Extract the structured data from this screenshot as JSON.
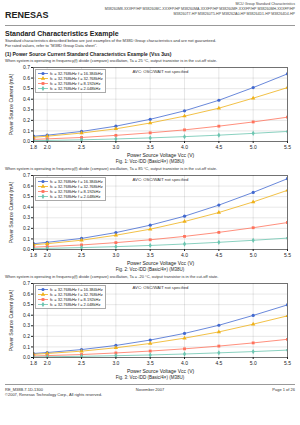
{
  "header": [
    "RENESAS",
    "MCU Group Standard Characteristics",
    "M38260M8-XXXFP/HP M38260MC-XXXFP/HP M38260MA-XXXFP/HP M38260MF-XXXFP/HP M38260MH-XXXFP/HP",
    "M38260T7-HP M38260T5-HP M38262A0-HP M38264D1-HP M38264D4-HP"
  ],
  "title": "Standard Characteristics Example",
  "subtitle": [
    "Standard characteristics described below are just examples of the M38D Group characteristics and are not guaranteed.",
    "For rated values, refer to \"M38D Group Data sheet\"."
  ],
  "footer": [
    "RE_M38B.7.1D-1300",
    "©2007, Renesas Technology Corp., All rights reserved.",
    "November 2007",
    "Page 1 of 26"
  ],
  "chart_data": [
    {
      "type": "line",
      "title": "(1) Power Source Current Standard Characteristics Example (Vss 3us)",
      "subtitle": "When system is operating in frequency(f) divide (compare) oscillation, Ta = 25 °C, output transistor is in the cut-off state.",
      "caption": "Fig. 1: Vcc-IDD (Basic/4×) (M38U)",
      "annotations": [
        "AVC: OSC/WAIT not specified"
      ],
      "xlabel": "Power Source Voltage Vcc (V)",
      "ylabel": "Power Source Current (mA)",
      "x": [
        1.8,
        2.0,
        2.5,
        3.0,
        3.5,
        4.0,
        4.5,
        5.0,
        5.5
      ],
      "series": [
        {
          "name": "fc = 32.768kHz  f = 16.384kHz",
          "marker": "circle",
          "values": [
            0.05,
            0.06,
            0.095,
            0.145,
            0.21,
            0.29,
            0.39,
            0.51,
            0.64
          ]
        },
        {
          "name": "fc = 32.768kHz  f = 32.768kHz",
          "marker": "triangle",
          "values": [
            0.04,
            0.05,
            0.08,
            0.12,
            0.175,
            0.24,
            0.315,
            0.41,
            0.51
          ]
        },
        {
          "name": "fc = 32.768kHz  f = 8.192kHz",
          "marker": "square",
          "values": [
            0.02,
            0.025,
            0.038,
            0.058,
            0.082,
            0.11,
            0.145,
            0.185,
            0.23
          ]
        },
        {
          "name": "fc = 32.768kHz  f = 2.048kHz",
          "marker": "diamond",
          "values": [
            0.008,
            0.01,
            0.016,
            0.024,
            0.034,
            0.046,
            0.06,
            0.077,
            0.095
          ]
        }
      ],
      "xlim": [
        1.8,
        5.5
      ],
      "ylim": [
        0.0,
        0.7
      ],
      "xticks": [
        1.8,
        {
          "value": 2.0,
          "label": "2.0"
        },
        2.5,
        {
          "value": 3.0,
          "label": "3.0"
        },
        3.5,
        {
          "value": 4.0,
          "label": "4.0"
        },
        4.5,
        {
          "value": 5.0,
          "label": "5.0"
        },
        5.5
      ],
      "yticks": [
        {
          "value": 0.0,
          "label": "0.0"
        },
        0.1,
        0.2,
        0.3,
        0.4,
        0.5,
        0.6,
        0.7
      ],
      "grid": true,
      "legend": "upper left"
    },
    {
      "type": "line",
      "subtitle": "When system is operating in frequency(f) divide (compare) oscillation, Ta = 85 °C, output transistor is in the cut-off state.",
      "caption": "Fig. 2: Vcc-IDD (Basic/4×) (M38U)",
      "annotations": [
        "AVC: OSC/WAIT not specified"
      ],
      "xlabel": "Power Source Voltage Vcc (V)",
      "ylabel": "Power Source Current (mA)",
      "x": [
        1.8,
        2.0,
        2.5,
        3.0,
        3.5,
        4.0,
        4.5,
        5.0,
        5.5
      ],
      "series": [
        {
          "name": "fc = 32.768kHz  f = 16.384kHz",
          "marker": "circle",
          "values": [
            0.055,
            0.068,
            0.105,
            0.16,
            0.23,
            0.315,
            0.42,
            0.54,
            0.67
          ]
        },
        {
          "name": "fc = 32.768kHz  f = 32.768kHz",
          "marker": "triangle",
          "values": [
            0.045,
            0.055,
            0.088,
            0.135,
            0.192,
            0.265,
            0.35,
            0.45,
            0.56
          ]
        },
        {
          "name": "fc = 32.768kHz  f = 8.192kHz",
          "marker": "square",
          "values": [
            0.022,
            0.028,
            0.043,
            0.065,
            0.092,
            0.124,
            0.162,
            0.206,
            0.255
          ]
        },
        {
          "name": "fc = 32.768kHz  f = 2.048kHz",
          "marker": "diamond",
          "values": [
            0.009,
            0.011,
            0.018,
            0.027,
            0.038,
            0.052,
            0.068,
            0.087,
            0.108
          ]
        }
      ],
      "xlim": [
        1.8,
        5.5
      ],
      "ylim": [
        0.0,
        0.7
      ],
      "xticks": [
        1.8,
        {
          "value": 2.0,
          "label": "2.0"
        },
        2.5,
        {
          "value": 3.0,
          "label": "3.0"
        },
        3.5,
        {
          "value": 4.0,
          "label": "4.0"
        },
        4.5,
        {
          "value": 5.0,
          "label": "5.0"
        },
        5.5
      ],
      "yticks": [
        {
          "value": 0.0,
          "label": "0.0"
        },
        0.1,
        0.2,
        0.3,
        0.4,
        0.5,
        0.6,
        0.7
      ],
      "grid": true,
      "legend": "upper left"
    },
    {
      "type": "line",
      "subtitle": "When system is operating in frequency(f) divide (compare) oscillation, Ta = -20 °C, output transistor is in the cut-off state.",
      "caption": "Fig. 3: Vcc-IDD (Basic/4×) (M38U)",
      "annotations": [
        "AVC: OSC/WAIT not specified"
      ],
      "xlabel": "Power Source Voltage Vcc (V)",
      "ylabel": "Power Source Current (mA)",
      "x": [
        1.8,
        2.0,
        2.5,
        3.0,
        3.5,
        4.0,
        4.5,
        5.0,
        5.5
      ],
      "series": [
        {
          "name": "fc = 32.768kHz  f = 16.384kHz",
          "marker": "circle",
          "values": [
            0.038,
            0.047,
            0.075,
            0.114,
            0.165,
            0.228,
            0.305,
            0.398,
            0.498
          ]
        },
        {
          "name": "fc = 32.768kHz  f = 32.768kHz",
          "marker": "triangle",
          "values": [
            0.03,
            0.038,
            0.06,
            0.092,
            0.133,
            0.183,
            0.242,
            0.315,
            0.394
          ]
        },
        {
          "name": "fc = 32.768kHz  f = 8.192kHz",
          "marker": "square",
          "values": [
            0.014,
            0.018,
            0.028,
            0.043,
            0.061,
            0.082,
            0.108,
            0.138,
            0.172
          ]
        },
        {
          "name": "fc = 32.768kHz  f = 2.048kHz",
          "marker": "diamond",
          "values": [
            0.005,
            0.007,
            0.011,
            0.017,
            0.024,
            0.033,
            0.044,
            0.056,
            0.07
          ]
        }
      ],
      "xlim": [
        1.8,
        5.5
      ],
      "ylim": [
        0.0,
        0.7
      ],
      "xticks": [
        1.8,
        {
          "value": 2.0,
          "label": "2.0"
        },
        2.5,
        {
          "value": 3.0,
          "label": "3.0"
        },
        3.5,
        {
          "value": 4.0,
          "label": "4.0"
        },
        4.5,
        {
          "value": 5.0,
          "label": "5.0"
        },
        5.5
      ],
      "yticks": [
        {
          "value": 0.0,
          "label": "0.0"
        },
        0.1,
        0.2,
        0.3,
        0.4,
        0.5,
        0.6,
        0.7
      ],
      "grid": true,
      "legend": "upper left"
    }
  ]
}
